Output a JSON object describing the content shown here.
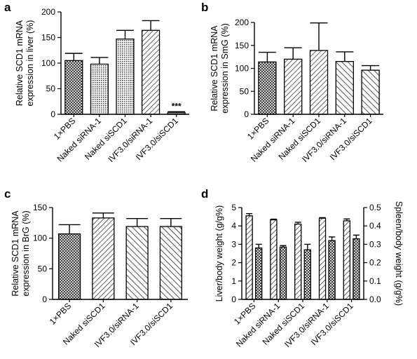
{
  "chart_data": [
    {
      "id": "a",
      "type": "bar",
      "panel_label": "a",
      "categories": [
        "1×PBS",
        "Naked siRNA-1",
        "Naked siSCD1",
        "IVF3.0/siRNA-1",
        "IVF3.0/siSCD1"
      ],
      "values": [
        105,
        98,
        147,
        164,
        3
      ],
      "errors": [
        14,
        13,
        17,
        19,
        2
      ],
      "patterns": [
        "cross",
        "dots",
        "dots",
        "diag",
        "dots"
      ],
      "ylabel_lines": [
        "Relative SCD1 mRNA",
        "expression in liver (%)"
      ],
      "ylim": [
        0,
        200
      ],
      "yticks": [
        "0",
        "50",
        "100",
        "150",
        "200"
      ],
      "annotations": [
        {
          "category_index": 4,
          "text": "***"
        }
      ],
      "grid": false
    },
    {
      "id": "b",
      "type": "bar",
      "panel_label": "b",
      "categories": [
        "1×PBS",
        "Naked siRNA-1",
        "Naked siSCD1",
        "IVF3.0/siRNA-1",
        "IVF3.0/siSCD1"
      ],
      "values": [
        114,
        120,
        139,
        115,
        96
      ],
      "errors": [
        21,
        25,
        60,
        21,
        10
      ],
      "patterns": [
        "cross",
        "diag",
        "diag",
        "anti",
        "anti"
      ],
      "ylabel_lines": [
        "Relative SCD1 mRNA",
        "expression in SmG (%)"
      ],
      "ylim": [
        0,
        200
      ],
      "yticks": [
        "0",
        "50",
        "100",
        "150",
        "200"
      ],
      "annotations": [],
      "grid": false
    },
    {
      "id": "c",
      "type": "bar",
      "panel_label": "c",
      "categories": [
        "1×PBS",
        "Naked siSCD1",
        "IVF3.0/siRNA-1",
        "IVF3.0/siSCD1"
      ],
      "values": [
        107,
        133,
        119,
        119
      ],
      "errors": [
        15,
        8,
        13,
        13
      ],
      "patterns": [
        "cross",
        "diag",
        "anti",
        "anti"
      ],
      "ylabel_lines": [
        "Relative SCD1 mRNA",
        "expression in BrG (%)"
      ],
      "ylim": [
        0,
        150
      ],
      "yticks": [
        "0",
        "50",
        "100",
        "150"
      ],
      "annotations": [],
      "grid": false
    },
    {
      "id": "d",
      "type": "bar",
      "panel_label": "d",
      "categories": [
        "1×PBS",
        "Naked siRNA-1",
        "Naked siSCD1",
        "IVF3.0/siRNA-1",
        "IVF3.0/siSCD1"
      ],
      "series": [
        {
          "values": [
            4.55,
            4.33,
            4.1,
            4.42,
            4.28
          ],
          "errors": [
            0.12,
            0.04,
            0.1,
            0.03,
            0.1
          ],
          "axis": "left",
          "pattern": "diag"
        },
        {
          "values": [
            0.28,
            0.285,
            0.27,
            0.32,
            0.33
          ],
          "errors": [
            0.02,
            0.008,
            0.03,
            0.02,
            0.02
          ],
          "axis": "right",
          "pattern": "cross"
        }
      ],
      "ylabel_lines": [
        "Liver/body weight (g/g%)"
      ],
      "ylim": [
        0,
        5
      ],
      "yticks": [
        "0",
        "1",
        "2",
        "3",
        "4",
        "5"
      ],
      "y2label_lines": [
        "Spleen/body weight (g/g%)"
      ],
      "y2lim": [
        0,
        0.5
      ],
      "y2ticks": [
        "0.0",
        "0.1",
        "0.2",
        "0.3",
        "0.4",
        "0.5"
      ],
      "grid": false
    }
  ]
}
